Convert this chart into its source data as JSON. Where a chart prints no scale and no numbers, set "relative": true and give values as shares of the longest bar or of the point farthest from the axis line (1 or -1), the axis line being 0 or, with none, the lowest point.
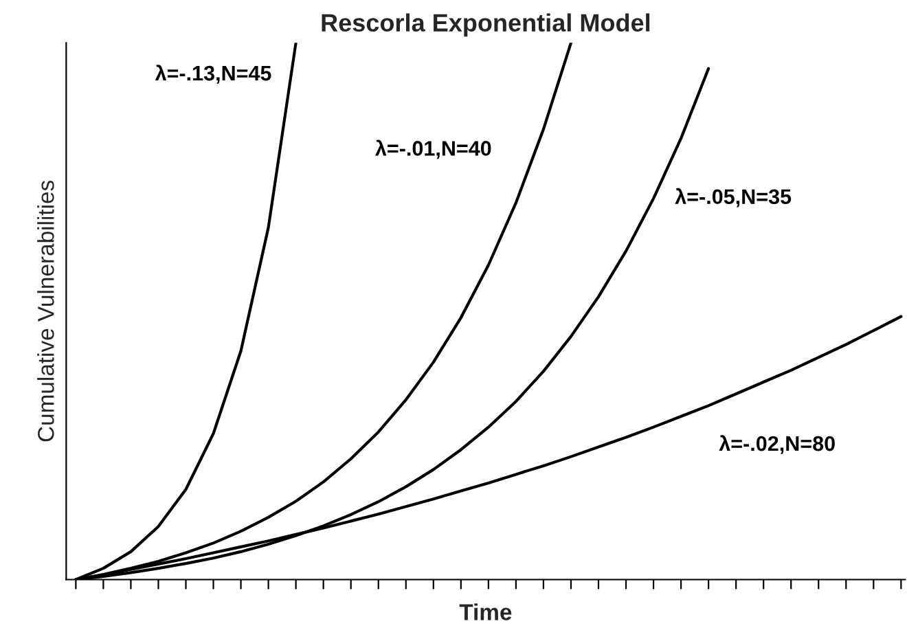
{
  "chart_data": {
    "type": "line",
    "title": "Rescorla Exponential Model",
    "xlabel": "Time",
    "ylabel": "Cumulative Vulnerabilities",
    "relative": true,
    "grid": false,
    "legend": false,
    "marker": "none",
    "line_style": "solid",
    "categories": [
      null,
      null,
      null,
      null,
      null,
      null,
      null,
      null,
      null,
      null,
      null,
      null,
      null,
      null,
      null,
      null,
      null,
      null,
      null,
      null,
      null,
      null,
      null,
      null,
      null,
      null,
      null,
      null,
      null,
      null,
      null
    ],
    "series": [
      {
        "name": "λ=-.13,N=45",
        "color": "#000000",
        "values": [
          0,
          0.021,
          0.052,
          0.099,
          0.168,
          0.272,
          0.426,
          0.656,
          1.0,
          null,
          null,
          null,
          null,
          null,
          null,
          null,
          null,
          null,
          null,
          null,
          null,
          null,
          null,
          null,
          null,
          null,
          null,
          null,
          null,
          null,
          null
        ]
      },
      {
        "name": "λ=-.01,N=40",
        "color": "#000000",
        "values": [
          0,
          0.0095,
          0.021,
          0.034,
          0.05,
          0.068,
          0.09,
          0.116,
          0.146,
          0.182,
          0.225,
          0.275,
          0.335,
          0.405,
          0.488,
          0.586,
          0.702,
          0.839,
          1.0,
          null,
          null,
          null,
          null,
          null,
          null,
          null,
          null,
          null,
          null,
          null,
          null
        ]
      },
      {
        "name": "λ=-.05,N=35",
        "color": "#000000",
        "values": [
          0,
          0.006,
          0.013,
          0.021,
          0.03,
          0.04,
          0.052,
          0.066,
          0.082,
          0.1,
          0.121,
          0.145,
          0.173,
          0.205,
          0.242,
          0.284,
          0.332,
          0.388,
          0.453,
          0.527,
          0.612,
          0.71,
          0.822,
          0.952,
          null,
          null,
          null,
          null,
          null,
          null,
          null
        ]
      },
      {
        "name": "λ=-.02,N=80",
        "color": "#000000",
        "values": [
          0,
          0.009,
          0.019,
          0.029,
          0.039,
          0.05,
          0.061,
          0.072,
          0.084,
          0.096,
          0.109,
          0.122,
          0.136,
          0.15,
          0.165,
          0.18,
          0.196,
          0.212,
          0.229,
          0.247,
          0.265,
          0.284,
          0.304,
          0.324,
          0.346,
          0.368,
          0.39,
          0.414,
          0.438,
          0.464,
          0.49
        ]
      }
    ]
  }
}
